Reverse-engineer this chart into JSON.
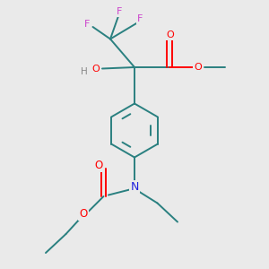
{
  "background_color": "#eaeaea",
  "bond_color": "#2a8080",
  "colors": {
    "O": "#ff0000",
    "F": "#cc44cc",
    "N": "#2020dd",
    "H": "#888888",
    "C": "#2a8080"
  },
  "figsize": [
    3.0,
    3.0
  ],
  "dpi": 100
}
